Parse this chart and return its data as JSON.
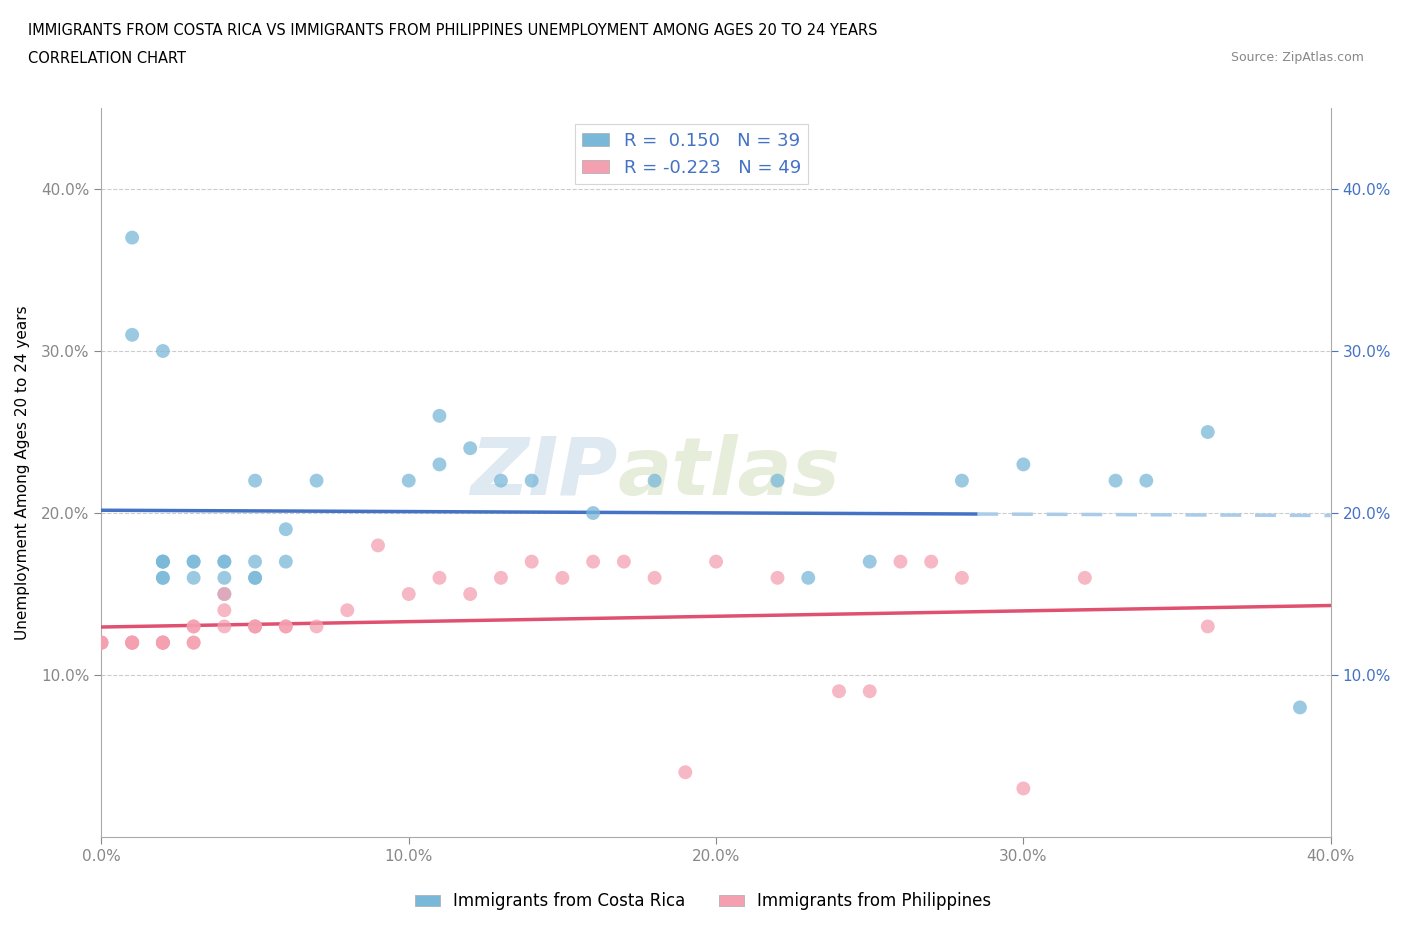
{
  "title_line1": "IMMIGRANTS FROM COSTA RICA VS IMMIGRANTS FROM PHILIPPINES UNEMPLOYMENT AMONG AGES 20 TO 24 YEARS",
  "title_line2": "CORRELATION CHART",
  "source_text": "Source: ZipAtlas.com",
  "ylabel": "Unemployment Among Ages 20 to 24 years",
  "r_costa_rica": 0.15,
  "n_costa_rica": 39,
  "r_philippines": -0.223,
  "n_philippines": 49,
  "xlim": [
    0.0,
    0.4
  ],
  "ylim": [
    0.0,
    0.45
  ],
  "xticks": [
    0.0,
    0.1,
    0.2,
    0.3,
    0.4
  ],
  "yticks": [
    0.1,
    0.2,
    0.3,
    0.4
  ],
  "xticklabels": [
    "0.0%",
    "10.0%",
    "20.0%",
    "30.0%",
    "40.0%"
  ],
  "yticklabels": [
    "10.0%",
    "20.0%",
    "30.0%",
    "40.0%"
  ],
  "right_yticklabels": [
    "10.0%",
    "20.0%",
    "30.0%",
    "40.0%"
  ],
  "color_costa_rica": "#7ab8d9",
  "color_philippines": "#f4a0b0",
  "line_color_costa_rica": "#4472c4",
  "line_color_philippines": "#e05070",
  "watermark": "ZIPAtlas",
  "legend_label_1": "Immigrants from Costa Rica",
  "legend_label_2": "Immigrants from Philippines",
  "costa_rica_x": [
    0.01,
    0.01,
    0.02,
    0.02,
    0.02,
    0.02,
    0.02,
    0.03,
    0.03,
    0.03,
    0.04,
    0.04,
    0.04,
    0.04,
    0.05,
    0.05,
    0.05,
    0.05,
    0.06,
    0.06,
    0.07,
    0.1,
    0.11,
    0.11,
    0.12,
    0.13,
    0.14,
    0.16,
    0.18,
    0.22,
    0.23,
    0.25,
    0.28,
    0.3,
    0.33,
    0.34,
    0.36,
    0.39,
    0.02
  ],
  "costa_rica_y": [
    0.37,
    0.31,
    0.16,
    0.17,
    0.17,
    0.17,
    0.16,
    0.17,
    0.17,
    0.16,
    0.17,
    0.17,
    0.16,
    0.15,
    0.17,
    0.16,
    0.16,
    0.22,
    0.17,
    0.19,
    0.22,
    0.22,
    0.26,
    0.23,
    0.24,
    0.22,
    0.22,
    0.2,
    0.22,
    0.22,
    0.16,
    0.17,
    0.22,
    0.23,
    0.22,
    0.22,
    0.25,
    0.08,
    0.3
  ],
  "philippines_x": [
    0.0,
    0.0,
    0.0,
    0.0,
    0.01,
    0.01,
    0.01,
    0.01,
    0.01,
    0.02,
    0.02,
    0.02,
    0.02,
    0.02,
    0.03,
    0.03,
    0.03,
    0.03,
    0.04,
    0.04,
    0.04,
    0.05,
    0.05,
    0.05,
    0.06,
    0.06,
    0.07,
    0.08,
    0.09,
    0.1,
    0.11,
    0.12,
    0.13,
    0.14,
    0.15,
    0.16,
    0.17,
    0.18,
    0.19,
    0.2,
    0.22,
    0.24,
    0.25,
    0.26,
    0.27,
    0.28,
    0.3,
    0.32,
    0.36
  ],
  "philippines_y": [
    0.12,
    0.12,
    0.12,
    0.12,
    0.12,
    0.12,
    0.12,
    0.12,
    0.12,
    0.12,
    0.12,
    0.12,
    0.12,
    0.12,
    0.13,
    0.13,
    0.12,
    0.12,
    0.15,
    0.14,
    0.13,
    0.13,
    0.13,
    0.13,
    0.13,
    0.13,
    0.13,
    0.14,
    0.18,
    0.15,
    0.16,
    0.15,
    0.16,
    0.17,
    0.16,
    0.17,
    0.17,
    0.16,
    0.04,
    0.17,
    0.16,
    0.09,
    0.09,
    0.17,
    0.17,
    0.16,
    0.03,
    0.16,
    0.13
  ]
}
